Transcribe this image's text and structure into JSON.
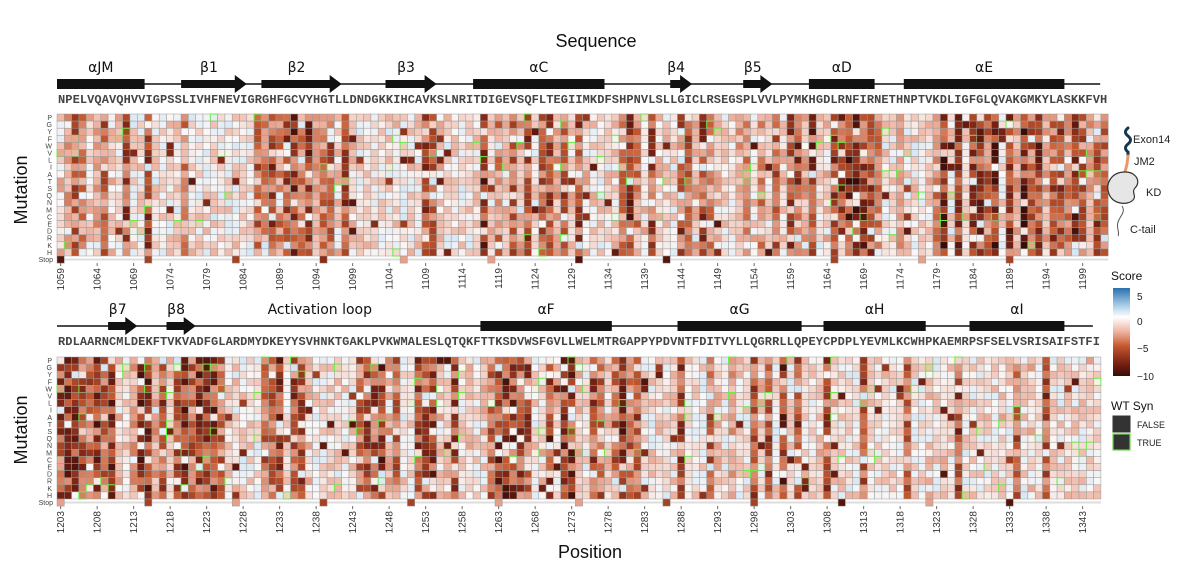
{
  "figure": {
    "title": "Sequence",
    "xlabel": "Position",
    "ylabel": "Mutation"
  },
  "chart_data": [
    {
      "type": "heatmap",
      "start_residue": 1059,
      "sequence": "NPELVQAVQHVVIGPSSLIVHFNEVIGRGHFGCVYHGTLLDNDGKKIHCAVKSLNRITDIGEVSQFLTEGIIMKDFSHPNVLSLLGICLRSEGSPLVVLPYMKHGDLRNFIRNETHNPTVKDLIGFGLQVAKGMKYLASKKFVH",
      "rows": [
        "P",
        "G",
        "Y",
        "F",
        "W",
        "V",
        "L",
        "I",
        "A",
        "T",
        "S",
        "Q",
        "N",
        "M",
        "C",
        "E",
        "D",
        "R",
        "K",
        "H",
        "Stop"
      ],
      "ticks": [
        "1059",
        "1064",
        "1069",
        "1074",
        "1079",
        "1084",
        "1089",
        "1094",
        "1099",
        "1104",
        "1109",
        "1114",
        "1119",
        "1124",
        "1129",
        "1134",
        "1139",
        "1144",
        "1149",
        "1154",
        "1159",
        "1164",
        "1169",
        "1174",
        "1179",
        "1184",
        "1189",
        "1194",
        "1199"
      ],
      "secondary_structure": [
        {
          "label": "αJM",
          "kind": "helix",
          "start": 1059,
          "end": 1070
        },
        {
          "label": "β1",
          "kind": "strand",
          "start": 1076,
          "end": 1084
        },
        {
          "label": "β2",
          "kind": "strand",
          "start": 1087,
          "end": 1097
        },
        {
          "label": "β3",
          "kind": "strand",
          "start": 1104,
          "end": 1110
        },
        {
          "label": "αC",
          "kind": "helix",
          "start": 1116,
          "end": 1133
        },
        {
          "label": "β4",
          "kind": "strand",
          "start": 1143,
          "end": 1145
        },
        {
          "label": "β5",
          "kind": "strand",
          "start": 1153,
          "end": 1156
        },
        {
          "label": "αD",
          "kind": "helix",
          "start": 1162,
          "end": 1170
        },
        {
          "label": "αE",
          "kind": "helix",
          "start": 1175,
          "end": 1196
        }
      ],
      "position_mean_score": [
        -2,
        -3,
        -5,
        -4,
        -2,
        -3,
        -5,
        -2,
        -2,
        -6,
        -1,
        -1,
        -6,
        -1,
        -1,
        -1,
        -1,
        -4,
        -1,
        -1,
        -1,
        -1,
        -1,
        -1,
        -1,
        -1,
        -1,
        -5,
        -4,
        -6,
        -4,
        -6,
        -7,
        -4,
        -7,
        -3,
        -5,
        -6,
        -2,
        -6,
        -2,
        -1,
        -1,
        -1,
        -1,
        -1,
        -2,
        -1,
        -1,
        -1,
        -6,
        -5,
        -2,
        -1,
        -1,
        -1,
        -1,
        -1,
        -7,
        -2,
        -4,
        -2,
        -5,
        -3,
        -6,
        -1,
        -5,
        -6,
        -3,
        -6,
        -2,
        -6,
        -2,
        -2,
        -1,
        -1,
        -2,
        -4,
        -7,
        -4,
        -2,
        -6,
        -2,
        -2,
        -1,
        -6,
        -5,
        -3,
        -6,
        -4,
        -2,
        -1,
        -1,
        -3,
        -4,
        -2,
        -4,
        -1,
        -5,
        -2,
        -6,
        -7,
        -3,
        -7,
        -1,
        -2,
        -6,
        -7,
        -8,
        -8,
        -7,
        -6,
        -4,
        -1,
        -1,
        -3,
        -1,
        -1,
        -1,
        -2,
        -4,
        -8,
        -1,
        -7,
        -2,
        -6,
        -7,
        -5,
        -8,
        -1,
        -7,
        -3,
        -8,
        -5,
        -7,
        -3,
        -6,
        -7,
        -4,
        -7,
        -5,
        -3,
        -6,
        -5
      ],
      "stop_scores": [
        {
          "position": 1059,
          "score": -9
        },
        {
          "position": 1071,
          "score": -6
        },
        {
          "position": 1083,
          "score": -6
        },
        {
          "position": 1095,
          "score": -7
        },
        {
          "position": 1106,
          "score": -3
        },
        {
          "position": 1118,
          "score": -3
        },
        {
          "position": 1130,
          "score": -9
        },
        {
          "position": 1142,
          "score": -9
        },
        {
          "position": 1165,
          "score": -6
        },
        {
          "position": 1177,
          "score": -3
        },
        {
          "position": 1189,
          "score": -6
        }
      ]
    },
    {
      "type": "heatmap",
      "start_residue": 1203,
      "sequence": "RDLAARNCMLDEKFTVKVADFGLARDMYDKEYYSVHNKTGAKLPVKWMALESLQTQKFTTKSDVWSFGVLLWELMTRGAPPYPDVNTFDITVYLLQGRRLLQPEYCPDPLYEVMLKCWHPKAEMRPSFSELVSRISAIFSTFI",
      "rows": [
        "P",
        "G",
        "Y",
        "F",
        "W",
        "V",
        "L",
        "I",
        "A",
        "T",
        "S",
        "Q",
        "N",
        "M",
        "C",
        "E",
        "D",
        "R",
        "K",
        "H",
        "Stop"
      ],
      "ticks": [
        "1203",
        "1208",
        "1213",
        "1218",
        "1223",
        "1228",
        "1233",
        "1238",
        "1243",
        "1248",
        "1253",
        "1258",
        "1263",
        "1268",
        "1273",
        "1278",
        "1283",
        "1288",
        "1293",
        "1298",
        "1303",
        "1308",
        "1313",
        "1318",
        "1323",
        "1328",
        "1333",
        "1338",
        "1343"
      ],
      "annotation": {
        "label": "Activation loop",
        "position": 1239
      },
      "secondary_structure": [
        {
          "label": "β7",
          "kind": "strand",
          "start": 1210,
          "end": 1213
        },
        {
          "label": "β8",
          "kind": "strand",
          "start": 1218,
          "end": 1221
        },
        {
          "label": "αF",
          "kind": "helix",
          "start": 1261,
          "end": 1278
        },
        {
          "label": "αG",
          "kind": "helix",
          "start": 1288,
          "end": 1304
        },
        {
          "label": "αH",
          "kind": "helix",
          "start": 1308,
          "end": 1321
        },
        {
          "label": "αI",
          "kind": "helix",
          "start": 1328,
          "end": 1340
        }
      ],
      "position_mean_score": [
        -6,
        -7,
        -7,
        -6,
        -5,
        -7,
        -5,
        -7,
        -2,
        -2,
        -3,
        -7,
        -7,
        -3,
        -6,
        -2,
        -6,
        -7,
        -5,
        -7,
        -7,
        -7,
        -5,
        -1,
        -1,
        -1,
        -1,
        -1,
        -5,
        -5,
        -7,
        -2,
        -6,
        -6,
        -2,
        -1,
        -1,
        -1,
        -1,
        -1,
        -1,
        -5,
        -6,
        -6,
        -7,
        -3,
        -5,
        -1,
        -1,
        -6,
        -6,
        -7,
        -2,
        -2,
        -6,
        -1,
        -2,
        -1,
        -2,
        -5,
        -7,
        -7,
        -7,
        -6,
        -6,
        -1,
        -2,
        -7,
        -2,
        -7,
        -7,
        -2,
        -1,
        -6,
        -5,
        -2,
        -5,
        -7,
        -5,
        -6,
        -1,
        -1,
        -2,
        -1,
        -1,
        -6,
        -1,
        -1,
        -1,
        -5,
        -2,
        -1,
        -3,
        -1,
        -1,
        -6,
        -2,
        -6,
        -1,
        -7,
        -1,
        -6,
        -1,
        -1,
        -2,
        -6,
        -2,
        -1,
        -1,
        -1,
        -6,
        -1,
        -1,
        -2,
        -1,
        -1,
        -5,
        -1,
        -1,
        -2,
        -1,
        -2,
        -1,
        -6,
        -1,
        -1,
        -1,
        -1,
        -1,
        -2,
        -1,
        -5,
        -1,
        -2,
        -1,
        -6,
        -1,
        -1,
        -1,
        -1,
        -1,
        -2,
        -1
      ],
      "stop_scores": [
        {
          "position": 1203,
          "score": -3
        },
        {
          "position": 1215,
          "score": -6
        },
        {
          "position": 1227,
          "score": -3
        },
        {
          "position": 1239,
          "score": -6
        },
        {
          "position": 1251,
          "score": -6
        },
        {
          "position": 1263,
          "score": -3
        },
        {
          "position": 1274,
          "score": -3
        },
        {
          "position": 1286,
          "score": -6
        },
        {
          "position": 1298,
          "score": -6
        },
        {
          "position": 1310,
          "score": -9
        },
        {
          "position": 1322,
          "score": -3
        },
        {
          "position": 1333,
          "score": -9
        }
      ]
    }
  ],
  "legend": {
    "score_title": "Score",
    "score_ticks": [
      "5",
      "0",
      "−5",
      "−10"
    ],
    "score_range": [
      -10,
      5
    ],
    "colors": {
      "high": "#2b6fae",
      "mid": "#ffffff",
      "low": "#c4582f",
      "min": "#3a0c06"
    },
    "wt_title": "WT Syn",
    "wt_items": [
      {
        "label": "FALSE",
        "outline": "#333333"
      },
      {
        "label": "TRUE",
        "outline": "#66dd44"
      }
    ]
  },
  "schematic": {
    "labels": [
      "Exon14",
      "JM2",
      "KD",
      "C-tail"
    ],
    "colors": {
      "exon14": "#14384f",
      "jm2": "#e8996a",
      "kd": "#e6e6e6"
    }
  }
}
